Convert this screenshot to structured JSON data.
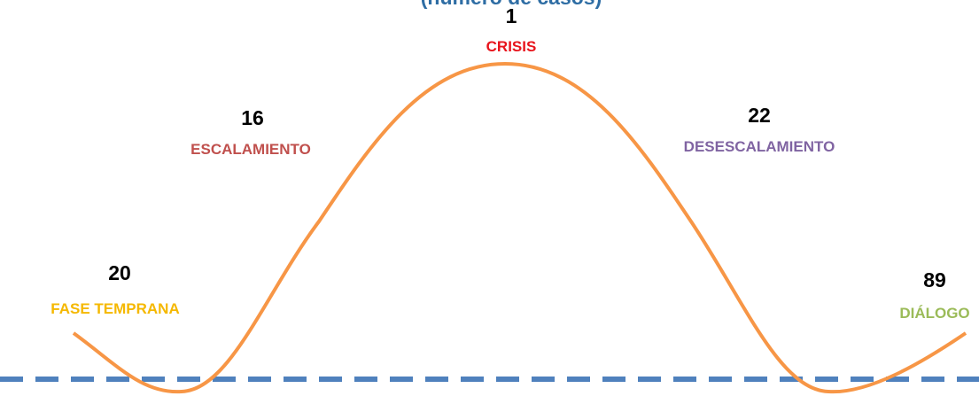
{
  "title": "(número de casos)",
  "phases": [
    {
      "label": "FASE TEMPRANA",
      "count": 20
    },
    {
      "label": "ESCALAMIENTO",
      "count": 16
    },
    {
      "label": "CRISIS",
      "count": 1
    },
    {
      "label": "DESESCALAMIENTO",
      "count": 22
    },
    {
      "label": "DIÁLOGO",
      "count": 89
    }
  ]
}
